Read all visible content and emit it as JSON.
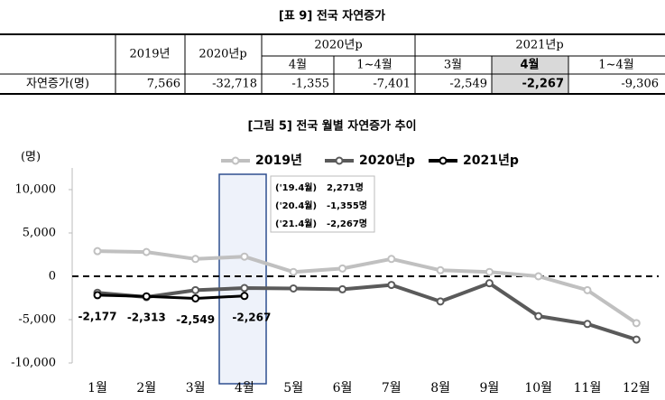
{
  "table": {
    "title": "[표 9] 전국 자연증가",
    "header_row1": [
      "2019년",
      "2020년p",
      "2020년p",
      "2021년p"
    ],
    "header_row2": [
      "4월",
      "1~4월",
      "3월",
      "4월",
      "1~4월"
    ],
    "row": [
      "자연증가(명)",
      "7,566",
      "-32,718",
      "-1,355",
      "-7,401",
      "-2,549",
      "-2,267",
      "-9,306"
    ]
  },
  "chart_data": {
    "type": "line",
    "title": "[그림 5] 전국 월별 자연증가 추이",
    "y_unit": "(명)",
    "categories": [
      "1월",
      "2월",
      "3월",
      "4월",
      "5월",
      "6월",
      "7월",
      "8월",
      "9월",
      "10월",
      "11월",
      "12월"
    ],
    "series": [
      {
        "name": "2019년",
        "color": "#c0c0c0",
        "values": [
          2900,
          2800,
          2000,
          2271,
          500,
          900,
          2000,
          700,
          500,
          0,
          -1600,
          -5400
        ]
      },
      {
        "name": "2020년p",
        "color": "#5a5a5a",
        "values": [
          -1900,
          -2400,
          -1600,
          -1355,
          -1400,
          -1500,
          -1000,
          -2900,
          -800,
          -4600,
          -5500,
          -7300
        ]
      },
      {
        "name": "2021년p",
        "color": "#000000",
        "values": [
          -2177,
          -2313,
          -2549,
          -2267,
          null,
          null,
          null,
          null,
          null,
          null,
          null,
          null
        ],
        "value_labels": [
          "-2,177",
          "-2,313",
          "-2,549",
          "-2,267",
          null,
          null,
          null,
          null,
          null,
          null,
          null,
          null
        ]
      }
    ],
    "ylim": [
      -10000,
      12500
    ],
    "yticks": [
      {
        "value": -10000,
        "label": "-10,000"
      },
      {
        "value": -5000,
        "label": "-5,000"
      },
      0,
      {
        "value": 5000,
        "label": "5,000"
      },
      {
        "value": 10000,
        "label": "10,000"
      }
    ],
    "annotations": [
      "('19.4월)",
      "2,271명",
      "('20.4월)",
      "-1,355명",
      "('21.4월)",
      "-2,267명"
    ]
  }
}
